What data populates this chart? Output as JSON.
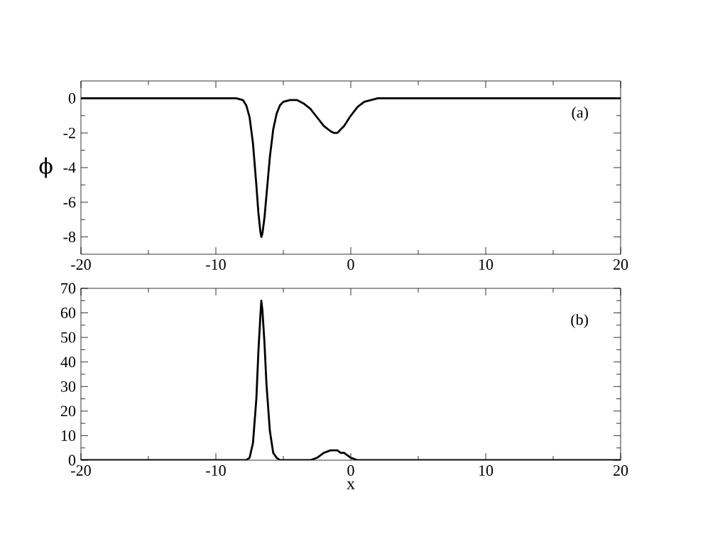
{
  "chart_data": [
    {
      "type": "line",
      "ylabel": "ϕ",
      "annotations": [
        "(a)"
      ],
      "xlim": [
        -20,
        20
      ],
      "xticks": [
        -20,
        -10,
        0,
        10,
        20
      ],
      "ylim": [
        -9,
        1
      ],
      "yticks": [
        -8,
        -6,
        -4,
        -2,
        0
      ],
      "series": [
        {
          "color": "#000000",
          "x": [
            -20,
            -10,
            -9,
            -8.5,
            -8,
            -7.75,
            -7.5,
            -7.25,
            -7,
            -6.85,
            -6.7,
            -6.63,
            -6.55,
            -6.4,
            -6.25,
            -6,
            -5.75,
            -5.5,
            -5.25,
            -5,
            -4.5,
            -4,
            -3.5,
            -3,
            -2.5,
            -2,
            -1.5,
            -1.25,
            -1,
            -0.75,
            -0.5,
            0,
            0.5,
            1,
            1.5,
            2,
            3,
            5,
            10,
            20
          ],
          "values": [
            0,
            0,
            0,
            0,
            -0.1,
            -0.4,
            -1.1,
            -2.6,
            -5.0,
            -6.6,
            -7.7,
            -8.0,
            -7.8,
            -6.9,
            -5.6,
            -3.4,
            -1.8,
            -0.9,
            -0.4,
            -0.2,
            -0.1,
            -0.1,
            -0.3,
            -0.6,
            -1.1,
            -1.6,
            -1.9,
            -2.0,
            -2.0,
            -1.8,
            -1.6,
            -1.0,
            -0.5,
            -0.2,
            -0.1,
            0,
            0,
            0,
            0,
            0
          ]
        }
      ]
    },
    {
      "type": "line",
      "xlabel": "x",
      "annotations": [
        "(b)"
      ],
      "xlim": [
        -20,
        20
      ],
      "xticks": [
        -20,
        -10,
        0,
        10,
        20
      ],
      "ylim": [
        0,
        70
      ],
      "yticks": [
        0,
        10,
        20,
        30,
        40,
        50,
        60,
        70
      ],
      "series": [
        {
          "color": "#000000",
          "x": [
            -20,
            -10,
            -9,
            -8.5,
            -8,
            -7.75,
            -7.5,
            -7.25,
            -7,
            -6.85,
            -6.7,
            -6.63,
            -6.55,
            -6.4,
            -6.25,
            -6,
            -5.75,
            -5.5,
            -5.25,
            -5,
            -4.5,
            -4,
            -3.5,
            -3,
            -2.5,
            -2,
            -1.5,
            -1.25,
            -1,
            -0.75,
            -0.5,
            0,
            0.5,
            1,
            1.5,
            2,
            3,
            5,
            10,
            20
          ],
          "values": [
            0,
            0,
            0,
            0,
            0,
            0,
            1,
            7,
            25,
            44,
            59,
            65,
            61,
            48,
            31,
            12,
            3,
            1,
            0,
            0,
            0,
            0,
            0,
            0,
            1,
            3,
            4,
            4,
            4,
            3,
            3,
            1,
            0,
            0,
            0,
            0,
            0,
            0,
            0,
            0
          ]
        }
      ]
    }
  ]
}
